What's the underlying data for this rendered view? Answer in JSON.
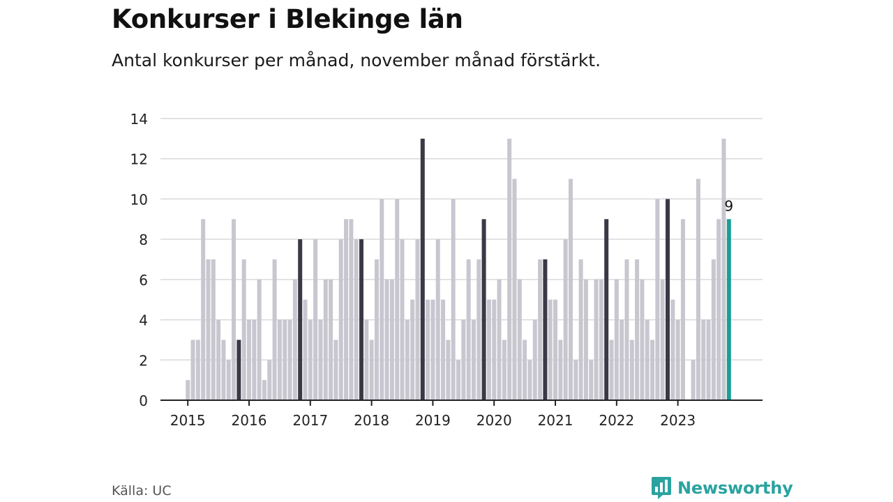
{
  "header": {
    "title": "Konkurser i Blekinge län",
    "subtitle": "Antal konkurser per månad, november månad förstärkt."
  },
  "footer": {
    "source": "Källa: UC",
    "brand": "Newsworthy"
  },
  "colors": {
    "bar_default": "#c8c7d0",
    "bar_november": "#3a3946",
    "bar_latest": "#1a9e96",
    "grid": "#d9d9de",
    "axis": "#222222",
    "brand": "#2aa3a0"
  },
  "chart_data": {
    "type": "bar",
    "start": "2015-01",
    "x_tick_labels": [
      "2015",
      "2016",
      "2017",
      "2018",
      "2019",
      "2020",
      "2021",
      "2022",
      "2023"
    ],
    "y_ticks": [
      0,
      2,
      4,
      6,
      8,
      10,
      12,
      14
    ],
    "ylim": [
      0,
      14
    ],
    "grid": true,
    "highlight_month": "november",
    "values": [
      1,
      3,
      3,
      9,
      7,
      7,
      4,
      3,
      2,
      9,
      3,
      7,
      4,
      4,
      6,
      1,
      2,
      7,
      4,
      4,
      4,
      6,
      8,
      5,
      4,
      8,
      4,
      6,
      6,
      3,
      8,
      9,
      9,
      8,
      8,
      4,
      3,
      7,
      10,
      6,
      6,
      10,
      8,
      4,
      5,
      8,
      13,
      5,
      5,
      8,
      5,
      3,
      10,
      2,
      4,
      7,
      4,
      7,
      9,
      5,
      5,
      6,
      3,
      13,
      11,
      6,
      3,
      2,
      4,
      7,
      7,
      5,
      5,
      3,
      8,
      11,
      2,
      7,
      6,
      2,
      6,
      6,
      9,
      3,
      6,
      4,
      7,
      3,
      7,
      6,
      4,
      3,
      10,
      6,
      10,
      5,
      4,
      9,
      0,
      2,
      11,
      4,
      4,
      7,
      9,
      13,
      9
    ],
    "annotations": [
      {
        "index": 106,
        "text": "9"
      }
    ]
  }
}
